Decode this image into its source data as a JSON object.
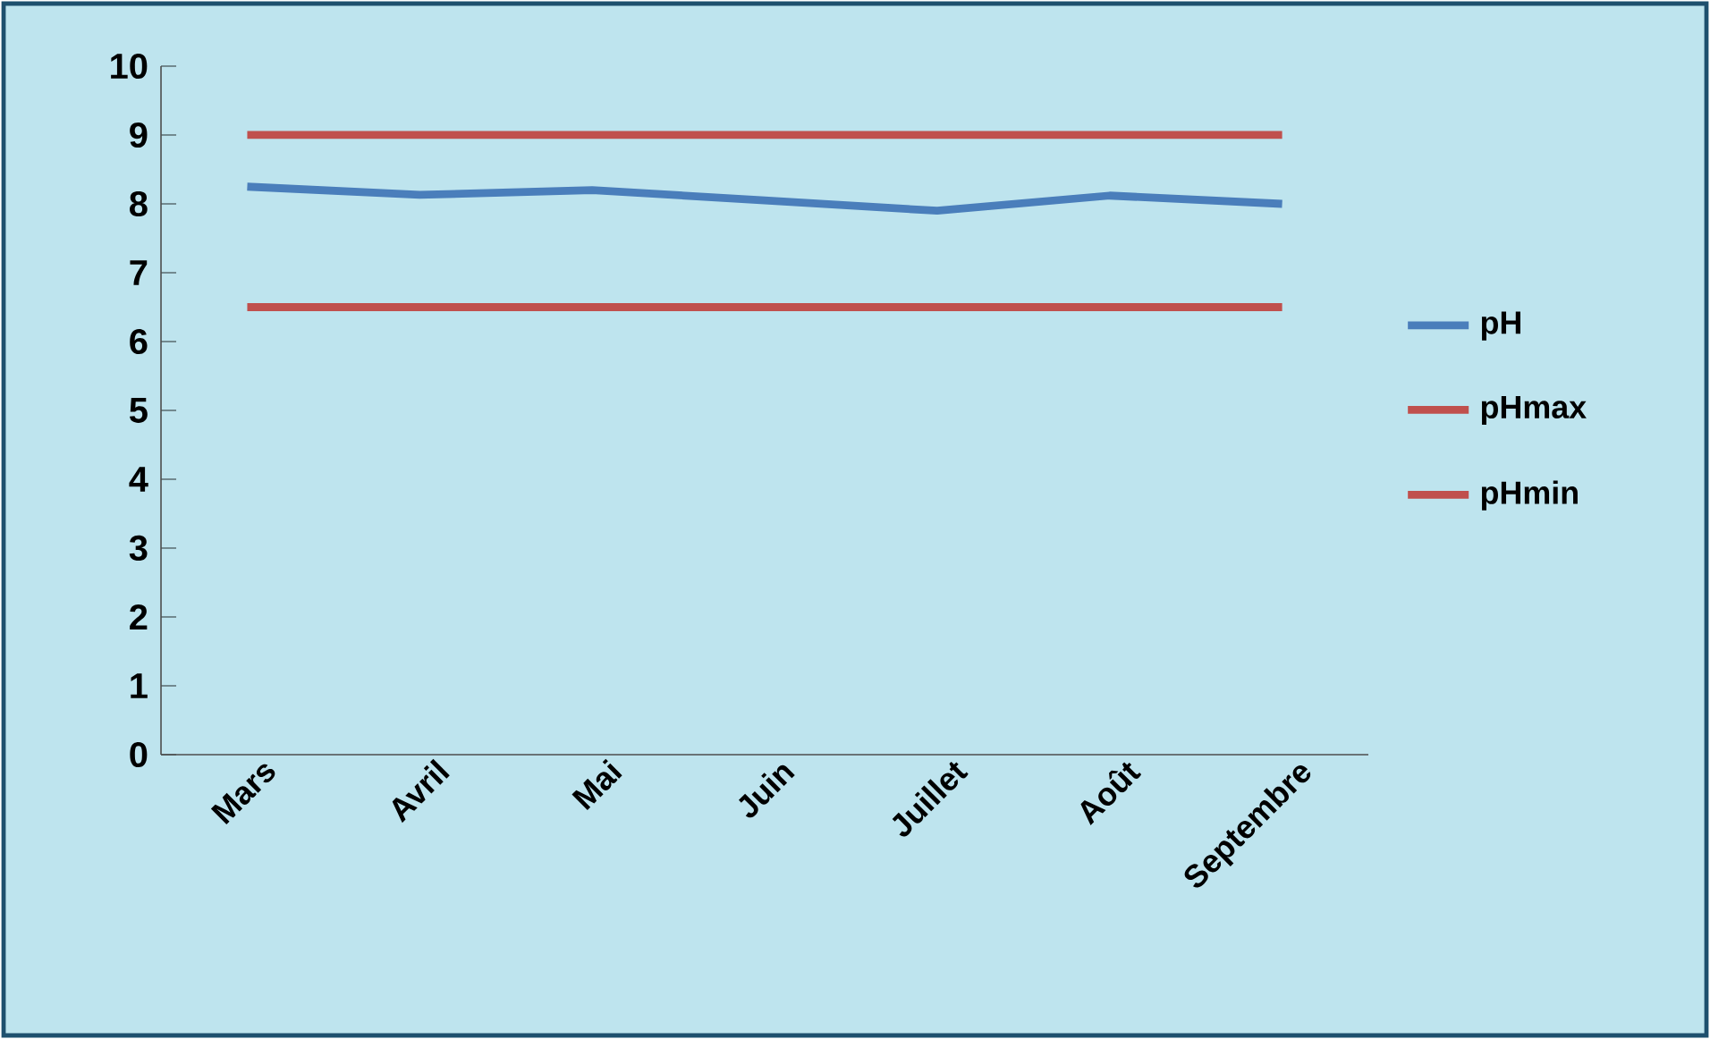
{
  "chart_data": {
    "type": "line",
    "categories": [
      "Mars",
      "Avril",
      "Mai",
      "Juin",
      "Juillet",
      "Août",
      "Septembre"
    ],
    "series": [
      {
        "name": "pH",
        "color": "#4a7ebb",
        "values": [
          8.25,
          8.13,
          8.2,
          8.05,
          7.9,
          8.12,
          8.0
        ]
      },
      {
        "name": "pHmax",
        "color": "#c0504d",
        "values": [
          9,
          9,
          9,
          9,
          9,
          9,
          9
        ]
      },
      {
        "name": "pHmin",
        "color": "#c0504d",
        "values": [
          6.5,
          6.5,
          6.5,
          6.5,
          6.5,
          6.5,
          6.5
        ]
      }
    ],
    "ylim": [
      0,
      10
    ],
    "yticks": [
      0,
      1,
      2,
      3,
      4,
      5,
      6,
      7,
      8,
      9,
      10
    ],
    "grid": false,
    "legend": "right",
    "marker": "none",
    "line_style": "solid"
  }
}
